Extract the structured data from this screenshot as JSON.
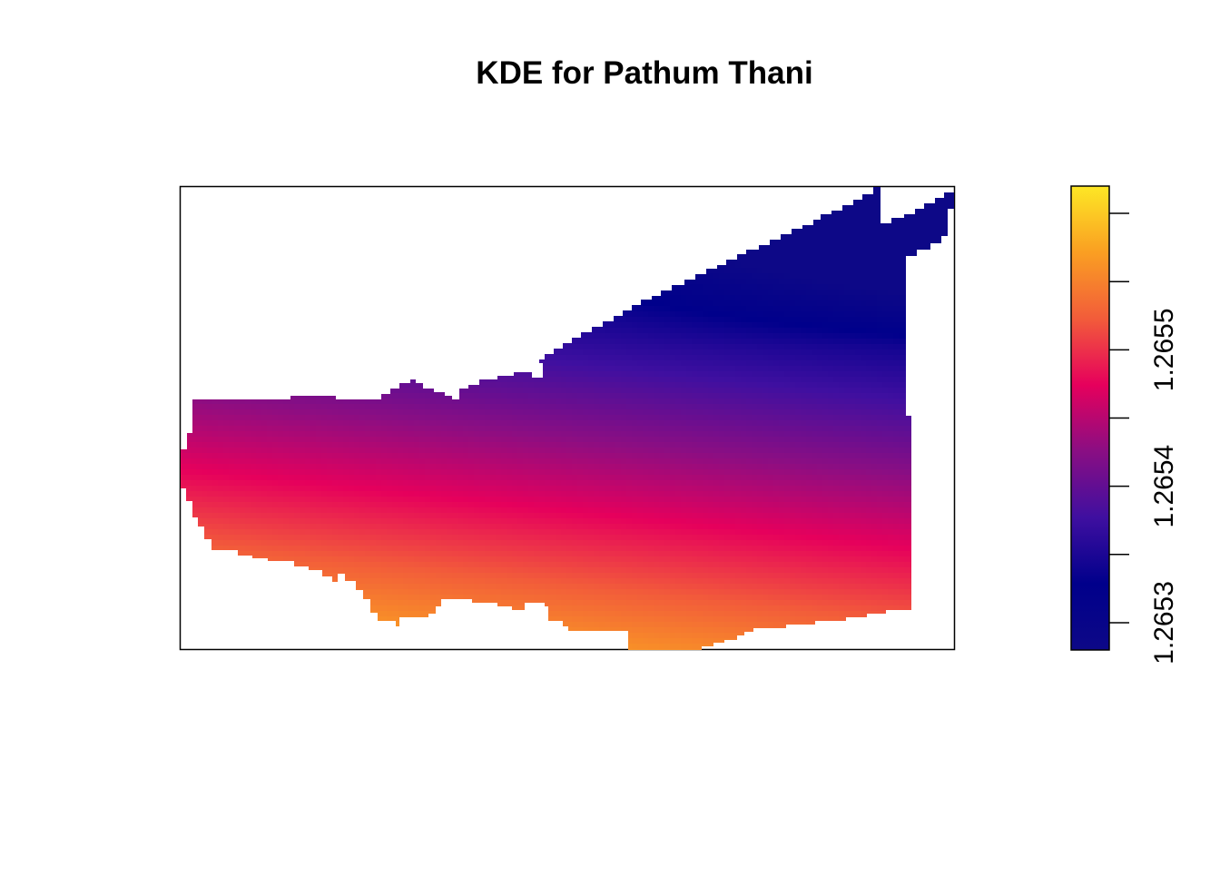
{
  "chart_data": {
    "type": "heatmap",
    "title": "KDE for Pathum Thani",
    "xlabel": "",
    "ylabel": "",
    "colorscale": {
      "name": "plasma",
      "stops": [
        "#0d0887",
        "#00008b",
        "#3f0fa0",
        "#8a0e83",
        "#e6005c",
        "#f25c3a",
        "#fa9f22",
        "#fde725"
      ],
      "range": [
        1.26525,
        1.26559
      ]
    },
    "colorbar": {
      "ticks": [
        1.26527,
        1.26532,
        1.26537,
        1.26542,
        1.26547,
        1.26552,
        1.26557
      ],
      "tick_labels": [
        "1.2653",
        "",
        "1.2654",
        "",
        "1.2655",
        "",
        ""
      ]
    },
    "surface": {
      "description_values": {
        "south_max": 1.26558,
        "center": 1.26541,
        "north_min": 1.26526
      }
    },
    "grid": false,
    "legend": "right"
  }
}
